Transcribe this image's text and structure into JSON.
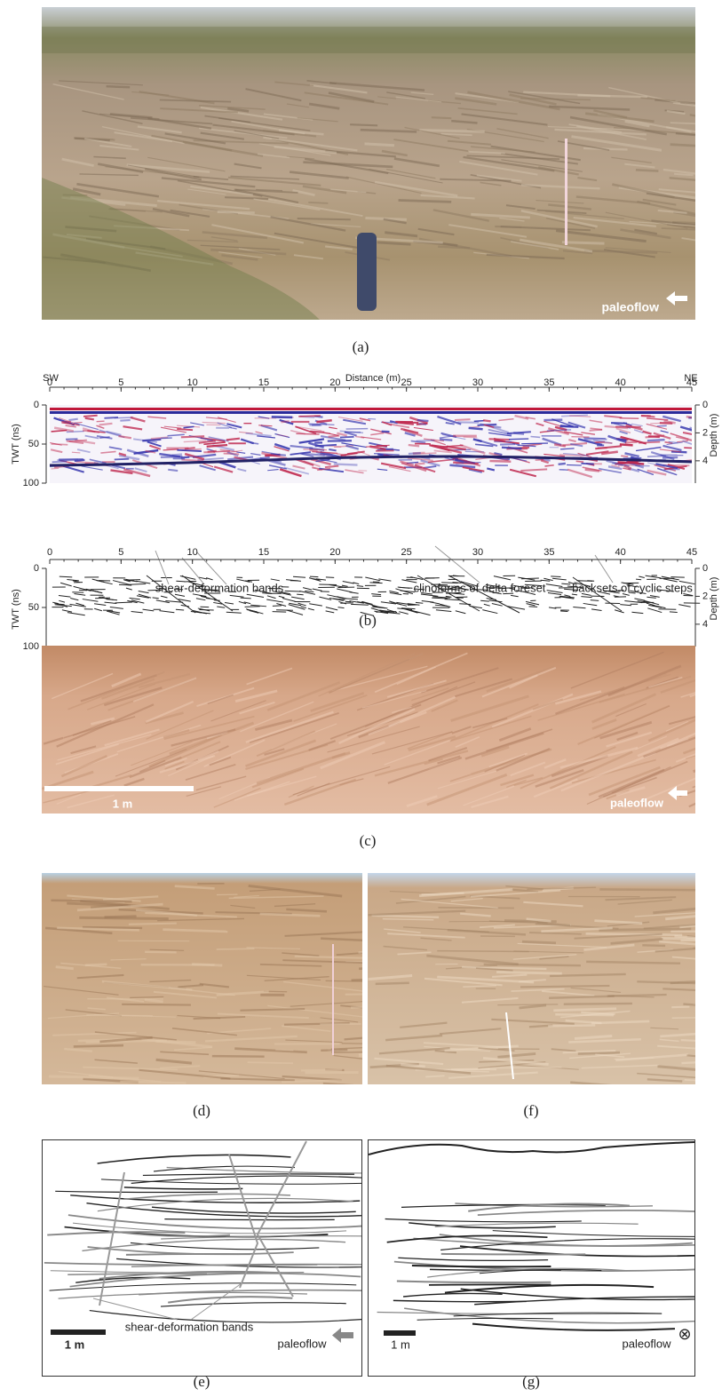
{
  "panels": {
    "a": {
      "label": "(a)",
      "annotation": "paleoflow"
    },
    "b": {
      "label": "(b)"
    },
    "c": {
      "label": "(c)",
      "scale": "1 m",
      "annotation": "paleoflow"
    },
    "d": {
      "label": "(d)"
    },
    "f": {
      "label": "(f)"
    },
    "e": {
      "label": "(e)",
      "annotation_bands": "shear-deformation bands",
      "scale": "1 m",
      "annotation": "paleoflow"
    },
    "g": {
      "label": "(g)",
      "scale": "1 m",
      "annotation": "paleoflow",
      "symbol": "⊗"
    }
  },
  "gpr": {
    "left_label": "SW",
    "right_label": "NE",
    "x_title": "Distance (m)",
    "y_title": "TWT (ns)",
    "depth_title": "Depth (m)",
    "xlim": [
      0,
      45
    ],
    "xticks": [
      0,
      5,
      10,
      15,
      20,
      25,
      30,
      35,
      40,
      45
    ],
    "ylim": [
      0,
      100
    ],
    "yticks": [
      0,
      50,
      100
    ],
    "depth_lim": [
      0,
      5.6
    ],
    "depth_ticks": [
      0,
      2,
      4
    ],
    "annotations": [
      "shear-deformation bands",
      "clinoforms of delta foreset",
      "backsets of cyclic steps"
    ]
  }
}
